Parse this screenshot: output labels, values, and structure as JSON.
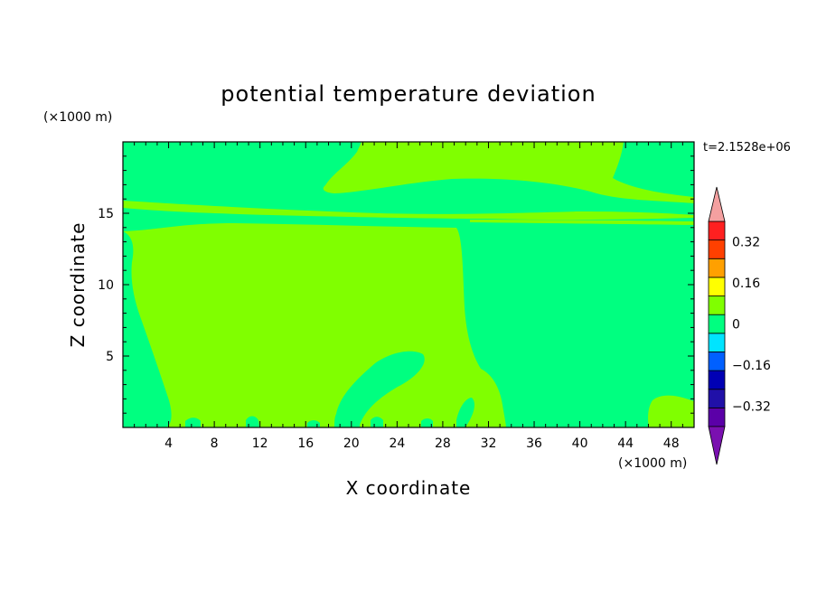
{
  "chart_data": {
    "type": "heatmap",
    "title": "potential temperature deviation",
    "xlabel": "X coordinate",
    "ylabel": "Z coordinate",
    "x_unit": "(×1000 m)",
    "y_unit": "(×1000 m)",
    "time_label": "t=2.1528e+06",
    "xlim": [
      0,
      50
    ],
    "ylim": [
      0,
      20
    ],
    "x_ticks": [
      4,
      8,
      12,
      16,
      20,
      24,
      28,
      32,
      36,
      40,
      44,
      48
    ],
    "y_ticks": [
      5,
      10,
      15
    ],
    "colorbar": {
      "levels": [
        -0.4,
        -0.32,
        -0.24,
        -0.16,
        -0.08,
        0,
        0.08,
        0.16,
        0.24,
        0.32,
        0.4
      ],
      "colors": [
        "#5b00a8",
        "#2010a8",
        "#0000b4",
        "#0060ff",
        "#00e4ff",
        "#00ff80",
        "#80ff00",
        "#ffff00",
        "#ffa000",
        "#ff4000",
        "#ff2020"
      ],
      "under_color": "#7a10b0",
      "over_color": "#f4a0a0",
      "labels": [
        {
          "value": -0.32,
          "text": "−0.32"
        },
        {
          "value": -0.16,
          "text": "−0.16"
        },
        {
          "value": 0,
          "text": "0"
        },
        {
          "value": 0.16,
          "text": "0.16"
        },
        {
          "value": 0.32,
          "text": "0.32"
        }
      ]
    },
    "field": {
      "background_range": [
        -0.08,
        0
      ],
      "background_color": "#00ff80",
      "positive_range": [
        0,
        0.08
      ],
      "positive_color": "#80ff00"
    }
  }
}
